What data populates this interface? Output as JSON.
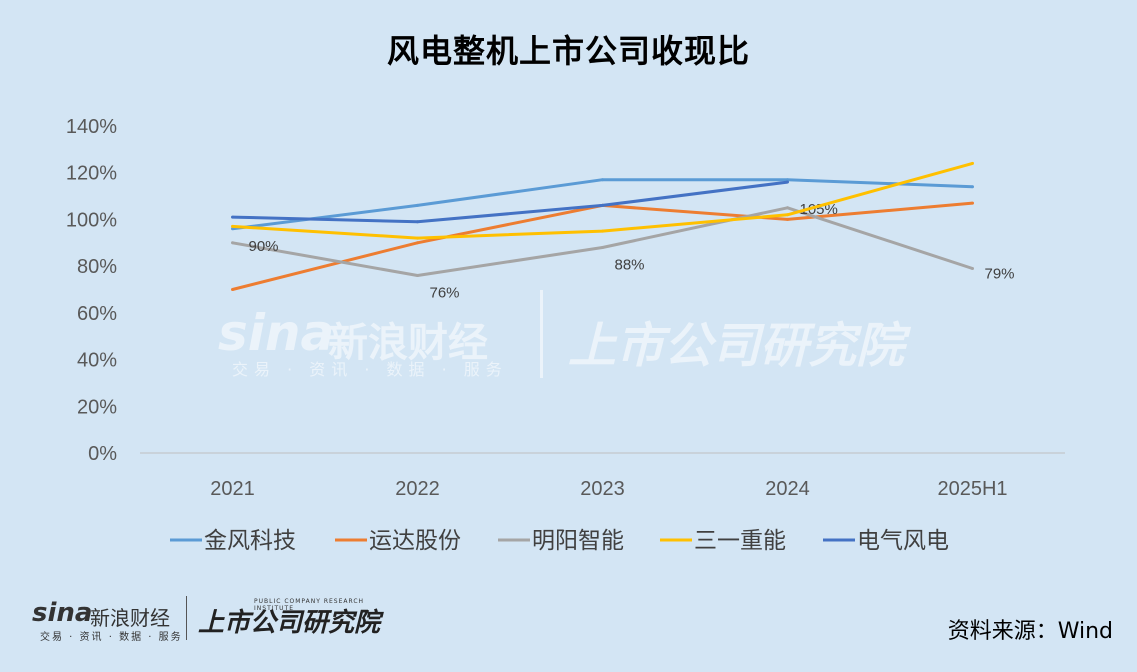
{
  "header": {
    "title": "风电整机上市公司收现比"
  },
  "brand": {
    "logo": "sina",
    "name": "新浪财经",
    "tagline": "交易 · 资讯 · 数据 · 服务",
    "institute": "上市公司研究院",
    "institute_en": "PUBLIC COMPANY RESEARCH INSTITUTE"
  },
  "source": "资料来源：Wind",
  "chart_data": {
    "type": "line",
    "title": "风电整机上市公司收现比",
    "categories": [
      "2021",
      "2022",
      "2023",
      "2024",
      "2025H1"
    ],
    "ylim": [
      0,
      140
    ],
    "yticks": [
      0,
      20,
      40,
      60,
      80,
      100,
      120,
      140
    ],
    "ytick_labels": [
      "0%",
      "20%",
      "40%",
      "60%",
      "80%",
      "100%",
      "120%",
      "140%"
    ],
    "grid": true,
    "legend_position": "bottom",
    "series": [
      {
        "name": "金风科技",
        "color": "#5b9bd5",
        "values": [
          96,
          106,
          117,
          117,
          114
        ],
        "labels": [
          null,
          null,
          null,
          null,
          null
        ]
      },
      {
        "name": "运达股份",
        "color": "#ed7d31",
        "values": [
          70,
          90,
          106,
          100,
          107
        ],
        "labels": [
          null,
          null,
          null,
          null,
          null
        ]
      },
      {
        "name": "明阳智能",
        "color": "#a5a5a5",
        "values": [
          90,
          76,
          88,
          105,
          79
        ],
        "labels": [
          "90%",
          "76%",
          "88%",
          "105%",
          "79%"
        ]
      },
      {
        "name": "三一重能",
        "color": "#ffc000",
        "values": [
          97,
          92,
          95,
          102,
          124
        ],
        "labels": [
          null,
          null,
          null,
          null,
          null
        ]
      },
      {
        "name": "电气风电",
        "color": "#4472c4",
        "values": [
          101,
          99,
          106,
          116,
          null
        ],
        "labels": [
          null,
          null,
          null,
          null,
          null
        ]
      }
    ]
  }
}
